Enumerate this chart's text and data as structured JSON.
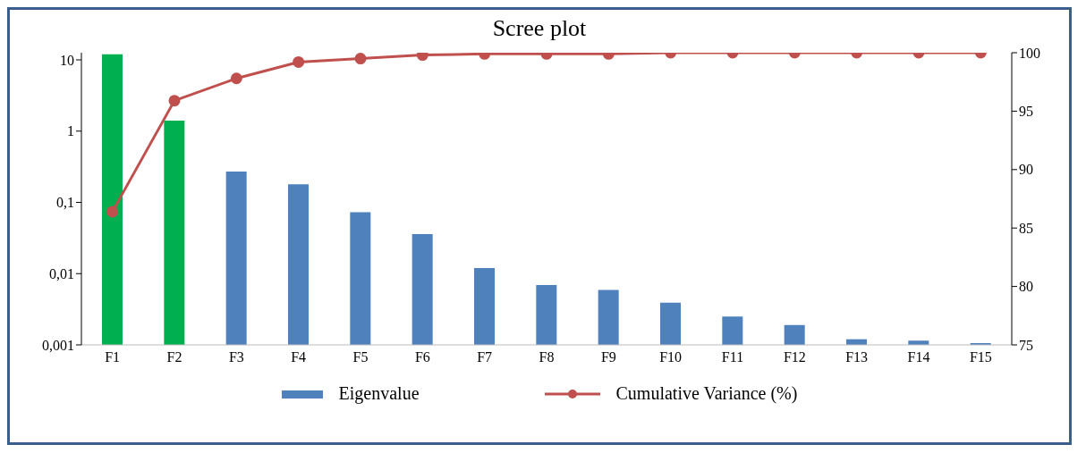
{
  "chart_data": {
    "type": "bar",
    "title": "Scree plot",
    "categories": [
      "F1",
      "F2",
      "F3",
      "F4",
      "F5",
      "F6",
      "F7",
      "F8",
      "F9",
      "F10",
      "F11",
      "F12",
      "F13",
      "F14",
      "F15"
    ],
    "series": [
      {
        "name": "Eigenvalue",
        "color": "#4f81bd",
        "colors": [
          "#00b050",
          "#00b050",
          "#4f81bd",
          "#4f81bd",
          "#4f81bd",
          "#4f81bd",
          "#4f81bd",
          "#4f81bd",
          "#4f81bd",
          "#4f81bd",
          "#4f81bd",
          "#4f81bd",
          "#4f81bd",
          "#4f81bd",
          "#4f81bd"
        ],
        "values": [
          12,
          1.4,
          0.27,
          0.18,
          0.073,
          0.036,
          0.012,
          0.0069,
          0.0059,
          0.0039,
          0.0025,
          0.0019,
          0.0012,
          0.00115,
          0.00106
        ]
      },
      {
        "name": "Cumulative Variance (%)",
        "type": "line",
        "axis": "y2",
        "color": "#c0504d",
        "values": [
          86.4,
          95.9,
          97.8,
          99.2,
          99.5,
          99.8,
          99.9,
          99.9,
          99.9,
          100,
          100,
          100,
          100,
          100,
          100
        ]
      }
    ],
    "log": "y",
    "ylim": [
      0.001,
      12.6
    ],
    "yticks": [
      {
        "value": 0.001,
        "label": "0,001"
      },
      {
        "value": 0.01,
        "label": "0,01"
      },
      {
        "value": 0.1,
        "label": "0,1"
      },
      1,
      10
    ],
    "y2lim": [
      75,
      100
    ],
    "y2ticks": [
      75,
      80,
      85,
      90,
      95,
      100
    ],
    "legend": "bottom",
    "marker": "circle",
    "grid": false
  }
}
